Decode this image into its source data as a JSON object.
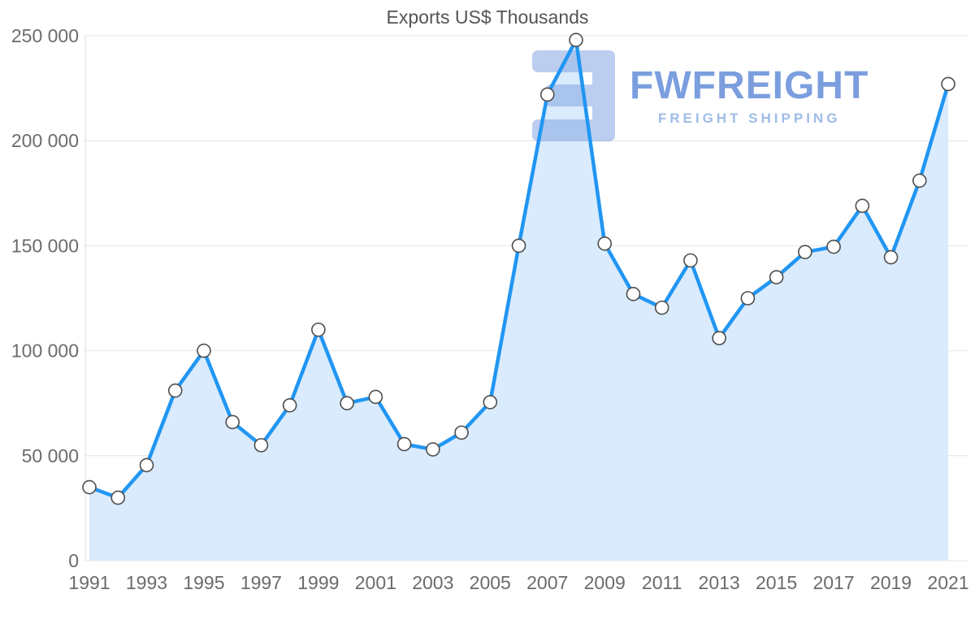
{
  "chart_data": {
    "type": "area",
    "title": "Exports US$ Thousands",
    "x": [
      1991,
      1992,
      1993,
      1994,
      1995,
      1996,
      1997,
      1998,
      1999,
      2000,
      2001,
      2002,
      2003,
      2004,
      2005,
      2006,
      2007,
      2008,
      2009,
      2010,
      2011,
      2012,
      2013,
      2014,
      2015,
      2016,
      2017,
      2018,
      2019,
      2020,
      2021
    ],
    "series": [
      {
        "name": "Exports US$ Thousands",
        "values": [
          35000,
          30000,
          45500,
          81000,
          100000,
          66000,
          55000,
          74000,
          110000,
          75000,
          78000,
          55500,
          53000,
          61000,
          75500,
          150000,
          222000,
          248000,
          151000,
          127000,
          120500,
          143000,
          106000,
          125000,
          135000,
          147000,
          149500,
          169000,
          144500,
          181000,
          227000
        ]
      }
    ],
    "ylim": [
      0,
      250000
    ],
    "y_ticks": [
      0,
      50000,
      100000,
      150000,
      200000,
      250000
    ],
    "y_tick_labels": [
      "0",
      "50 000",
      "100 000",
      "150 000",
      "200 000",
      "250 000"
    ],
    "x_tick_labels": [
      "1991",
      "1993",
      "1995",
      "1997",
      "1999",
      "2001",
      "2003",
      "2005",
      "2007",
      "2009",
      "2011",
      "2013",
      "2015",
      "2017",
      "2019",
      "2021"
    ],
    "grid": "horizontal",
    "legend": "none"
  },
  "watermark": {
    "brand": "FWFREIGHT",
    "tagline": "FREIGHT SHIPPING",
    "logo": "fwfreight-logo"
  },
  "colors": {
    "line": "#2196f3",
    "fill": "#d9ebfc",
    "marker_fill": "#ffffff",
    "marker_stroke": "#4d4d4d",
    "grid": "#e4e4e4",
    "axis": "#dddddd",
    "title": "#545454",
    "tick": "#6b6b6b",
    "watermark_brand": "#5b87d7",
    "watermark_light": "#9ebde9"
  }
}
